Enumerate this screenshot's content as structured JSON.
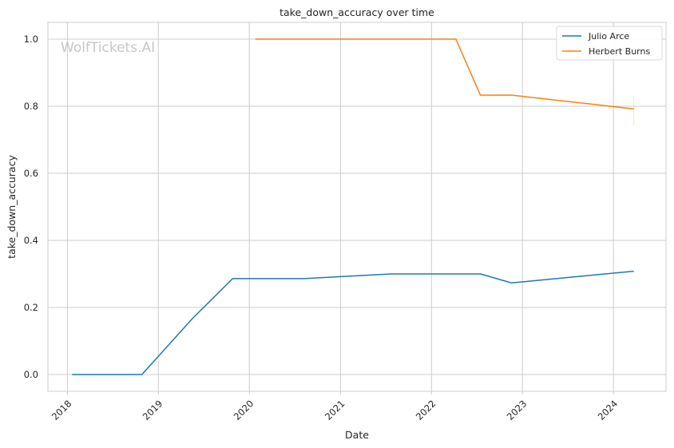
{
  "chart_data": {
    "type": "line",
    "title": "take_down_accuracy over time",
    "xlabel": "Date",
    "ylabel": "take_down_accuracy",
    "watermark": "WolfTickets.AI",
    "xlim": [
      "2017-10-15",
      "2024-07-30"
    ],
    "ylim": [
      -0.05,
      1.05
    ],
    "x_ticks": [
      "2018",
      "2019",
      "2020",
      "2021",
      "2022",
      "2023",
      "2024"
    ],
    "y_ticks": [
      "0.0",
      "0.2",
      "0.4",
      "0.6",
      "0.8",
      "1.0"
    ],
    "grid": true,
    "legend_position": "top-right",
    "series": [
      {
        "name": "Julio Arce",
        "color": "#1f77b4",
        "x": [
          "2018-01-20",
          "2018-10-27",
          "2019-05-18",
          "2019-10-26",
          "2020-08-08",
          "2021-07-24",
          "2022-06-04",
          "2022-07-16",
          "2022-11-19",
          "2024-03-23"
        ],
        "y": [
          0.0,
          0.0,
          0.167,
          0.286,
          0.286,
          0.3,
          0.3,
          0.3,
          0.273,
          0.308
        ]
      },
      {
        "name": "Herbert Burns",
        "color": "#ff7f0e",
        "x": [
          "2020-01-25",
          "2022-04-09",
          "2022-07-16",
          "2022-11-19",
          "2024-03-23"
        ],
        "y": [
          1.0,
          1.0,
          0.833,
          0.833,
          0.792
        ]
      }
    ]
  }
}
